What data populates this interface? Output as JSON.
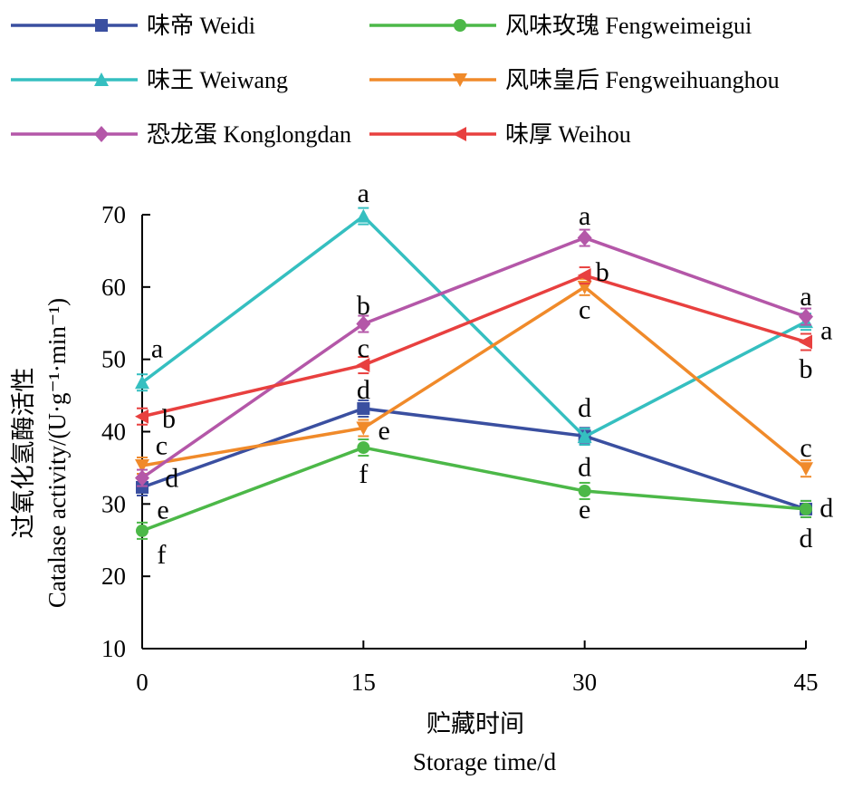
{
  "chart_data": {
    "type": "line",
    "xlabel_cn": "贮藏时间",
    "xlabel": "Storage time/d",
    "ylabel_cn": "过氧化氢酶活性",
    "ylabel": "Catalase activity/(U·g⁻¹·min⁻¹)",
    "x": [
      0,
      15,
      30,
      45
    ],
    "x_ticks": [
      "0",
      "15",
      "30",
      "45"
    ],
    "ylim": [
      10,
      70
    ],
    "y_ticks": [
      "10",
      "20",
      "30",
      "40",
      "50",
      "60",
      "70"
    ],
    "legend_placement": "top",
    "series": [
      {
        "name": "味帝 Weidi",
        "color": "#3a4fa0",
        "marker": "square",
        "values": [
          32.3,
          43.2,
          39.4,
          29.3
        ]
      },
      {
        "name": "风味玫瑰 Fengweimeigui",
        "color": "#4cb848",
        "marker": "circle",
        "values": [
          26.3,
          37.8,
          31.8,
          29.3
        ]
      },
      {
        "name": "味王 Weiwang",
        "color": "#35bfc0",
        "marker": "triangle-up",
        "values": [
          46.8,
          69.8,
          39.3,
          55.2
        ]
      },
      {
        "name": "风味皇后 Fengweihuanghou",
        "color": "#f08a2a",
        "marker": "triangle-down",
        "values": [
          35.3,
          40.5,
          60.0,
          34.9
        ]
      },
      {
        "name": "恐龙蛋 Konglongdan",
        "color": "#b457a8",
        "marker": "diamond",
        "values": [
          33.6,
          54.9,
          66.8,
          55.9
        ]
      },
      {
        "name": "味厚 Weihou",
        "color": "#e8403f",
        "marker": "triangle-left",
        "values": [
          42.1,
          49.2,
          61.6,
          52.4
        ]
      }
    ],
    "annotations": [
      {
        "x": 0.4,
        "y": 51.5,
        "text": "a"
      },
      {
        "x": 1.2,
        "y": 41.8,
        "text": "b"
      },
      {
        "x": 0.7,
        "y": 38.1,
        "text": "c"
      },
      {
        "x": 1.4,
        "y": 33.6,
        "text": "d"
      },
      {
        "x": 0.8,
        "y": 29.2,
        "text": "e"
      },
      {
        "x": 0.7,
        "y": 23.0,
        "text": "f"
      },
      {
        "x": 15,
        "y": 73.0,
        "text": "a"
      },
      {
        "x": 15,
        "y": 57.5,
        "text": "b"
      },
      {
        "x": 15,
        "y": 51.6,
        "text": "c"
      },
      {
        "x": 15,
        "y": 45.8,
        "text": "d"
      },
      {
        "x": 16.4,
        "y": 40.2,
        "text": "e"
      },
      {
        "x": 15,
        "y": 34.2,
        "text": "f"
      },
      {
        "x": 30,
        "y": 69.9,
        "text": "a"
      },
      {
        "x": 31.2,
        "y": 62.1,
        "text": "b"
      },
      {
        "x": 30,
        "y": 56.9,
        "text": "c"
      },
      {
        "x": 30,
        "y": 43.3,
        "text": "d"
      },
      {
        "x": 30,
        "y": 35.1,
        "text": "d"
      },
      {
        "x": 30,
        "y": 29.3,
        "text": "e"
      },
      {
        "x": 45,
        "y": 58.7,
        "text": "a"
      },
      {
        "x": 46.4,
        "y": 54.0,
        "text": "a"
      },
      {
        "x": 45,
        "y": 48.7,
        "text": "b"
      },
      {
        "x": 45,
        "y": 37.8,
        "text": "c"
      },
      {
        "x": 46.4,
        "y": 29.5,
        "text": "d"
      },
      {
        "x": 45,
        "y": 25.3,
        "text": "d"
      }
    ]
  }
}
